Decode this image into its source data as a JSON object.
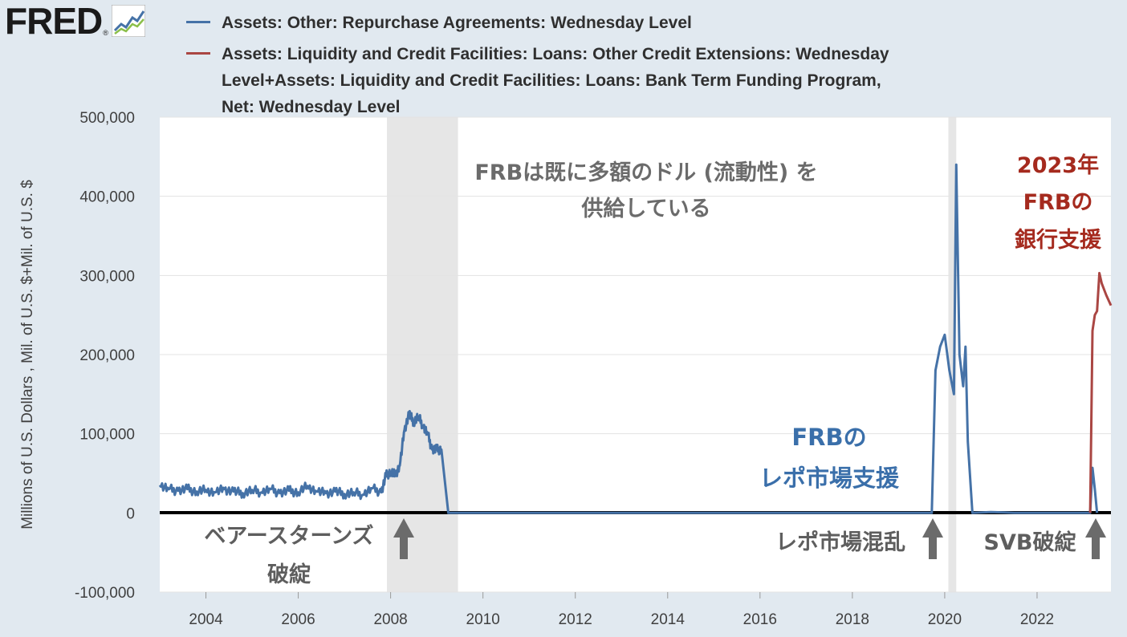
{
  "header": {
    "logo_text": "FRED",
    "logo_reg": "®",
    "logo_icon": "chart-line-icon"
  },
  "legend": [
    {
      "label": "Assets: Other: Repurchase Agreements: Wednesday Level",
      "color": "#4572a7"
    },
    {
      "label": "Assets: Liquidity and Credit Facilities: Loans: Other Credit Extensions: Wednesday Level+Assets: Liquidity and Credit Facilities: Loans: Bank Term Funding Program, Net: Wednesday Level",
      "color": "#aa4643"
    }
  ],
  "annotations": {
    "top_center_line1": "FRBは既に多額のドル (流動性) を",
    "top_center_line2": "供給している",
    "right_line1": "2023年",
    "right_line2": "FRBの",
    "right_line3": "銀行支援",
    "middle_line1": "FRBの",
    "middle_line2": "レポ市場支援",
    "bottom_1_line1": "ベアースターンズ",
    "bottom_1_line2": "破綻",
    "bottom_2": "レポ市場混乱",
    "bottom_3": "SVB破綻"
  },
  "chart_data": {
    "type": "line",
    "ylabel": "Millions of U.S. Dollars , Mil. of U.S. $+Mil. of U.S. $",
    "xlabel": "",
    "x_ticks": [
      "2004",
      "2006",
      "2008",
      "2010",
      "2012",
      "2014",
      "2016",
      "2018",
      "2020",
      "2022"
    ],
    "y_ticks": [
      "500,000",
      "400,000",
      "300,000",
      "200,000",
      "100,000",
      "0",
      "-100,000"
    ],
    "xlim": [
      2003.0,
      2023.6
    ],
    "ylim": [
      -100000,
      500000
    ],
    "recessions": [
      [
        2007.92,
        2009.46
      ],
      [
        2020.08,
        2020.25
      ]
    ],
    "series": [
      {
        "name": "Assets: Other: Repurchase Agreements: Wednesday Level",
        "color": "#4572a7",
        "points": [
          [
            2003.0,
            35000
          ],
          [
            2003.2,
            30000
          ],
          [
            2003.4,
            28000
          ],
          [
            2003.6,
            30000
          ],
          [
            2003.8,
            27000
          ],
          [
            2004.0,
            29000
          ],
          [
            2004.2,
            26000
          ],
          [
            2004.4,
            30000
          ],
          [
            2004.6,
            27000
          ],
          [
            2004.8,
            25000
          ],
          [
            2005.0,
            29000
          ],
          [
            2005.2,
            26000
          ],
          [
            2005.4,
            30000
          ],
          [
            2005.6,
            25000
          ],
          [
            2005.8,
            28000
          ],
          [
            2006.0,
            26000
          ],
          [
            2006.2,
            34000
          ],
          [
            2006.4,
            27000
          ],
          [
            2006.6,
            25000
          ],
          [
            2006.8,
            27000
          ],
          [
            2007.0,
            24000
          ],
          [
            2007.2,
            26000
          ],
          [
            2007.4,
            23000
          ],
          [
            2007.6,
            31000
          ],
          [
            2007.8,
            26000
          ],
          [
            2007.9,
            47000
          ],
          [
            2008.0,
            52000
          ],
          [
            2008.1,
            48000
          ],
          [
            2008.2,
            60000
          ],
          [
            2008.3,
            105000
          ],
          [
            2008.4,
            125000
          ],
          [
            2008.5,
            115000
          ],
          [
            2008.6,
            122000
          ],
          [
            2008.7,
            110000
          ],
          [
            2008.8,
            100000
          ],
          [
            2008.9,
            80000
          ],
          [
            2009.0,
            80000
          ],
          [
            2009.1,
            80000
          ],
          [
            2009.25,
            0
          ],
          [
            2019.72,
            0
          ],
          [
            2019.8,
            180000
          ],
          [
            2019.9,
            210000
          ],
          [
            2020.0,
            225000
          ],
          [
            2020.1,
            180000
          ],
          [
            2020.2,
            150000
          ],
          [
            2020.25,
            440000
          ],
          [
            2020.32,
            200000
          ],
          [
            2020.4,
            160000
          ],
          [
            2020.45,
            210000
          ],
          [
            2020.5,
            90000
          ],
          [
            2020.6,
            0
          ],
          [
            2021.0,
            1000
          ],
          [
            2021.3,
            500
          ],
          [
            2021.5,
            0
          ],
          [
            2023.15,
            0
          ],
          [
            2023.2,
            57000
          ],
          [
            2023.25,
            30000
          ],
          [
            2023.3,
            0
          ]
        ]
      },
      {
        "name": "Assets: Liquidity and Credit Facilities: Loans: Other Credit Extensions: Wednesday Level+Assets: Liquidity and Credit Facilities: Loans: Bank Term Funding Program, Net: Wednesday Level",
        "color": "#aa4643",
        "points": [
          [
            2023.15,
            0
          ],
          [
            2023.2,
            230000
          ],
          [
            2023.25,
            250000
          ],
          [
            2023.3,
            255000
          ],
          [
            2023.35,
            303000
          ],
          [
            2023.4,
            290000
          ],
          [
            2023.5,
            275000
          ],
          [
            2023.6,
            262000
          ]
        ]
      }
    ]
  }
}
